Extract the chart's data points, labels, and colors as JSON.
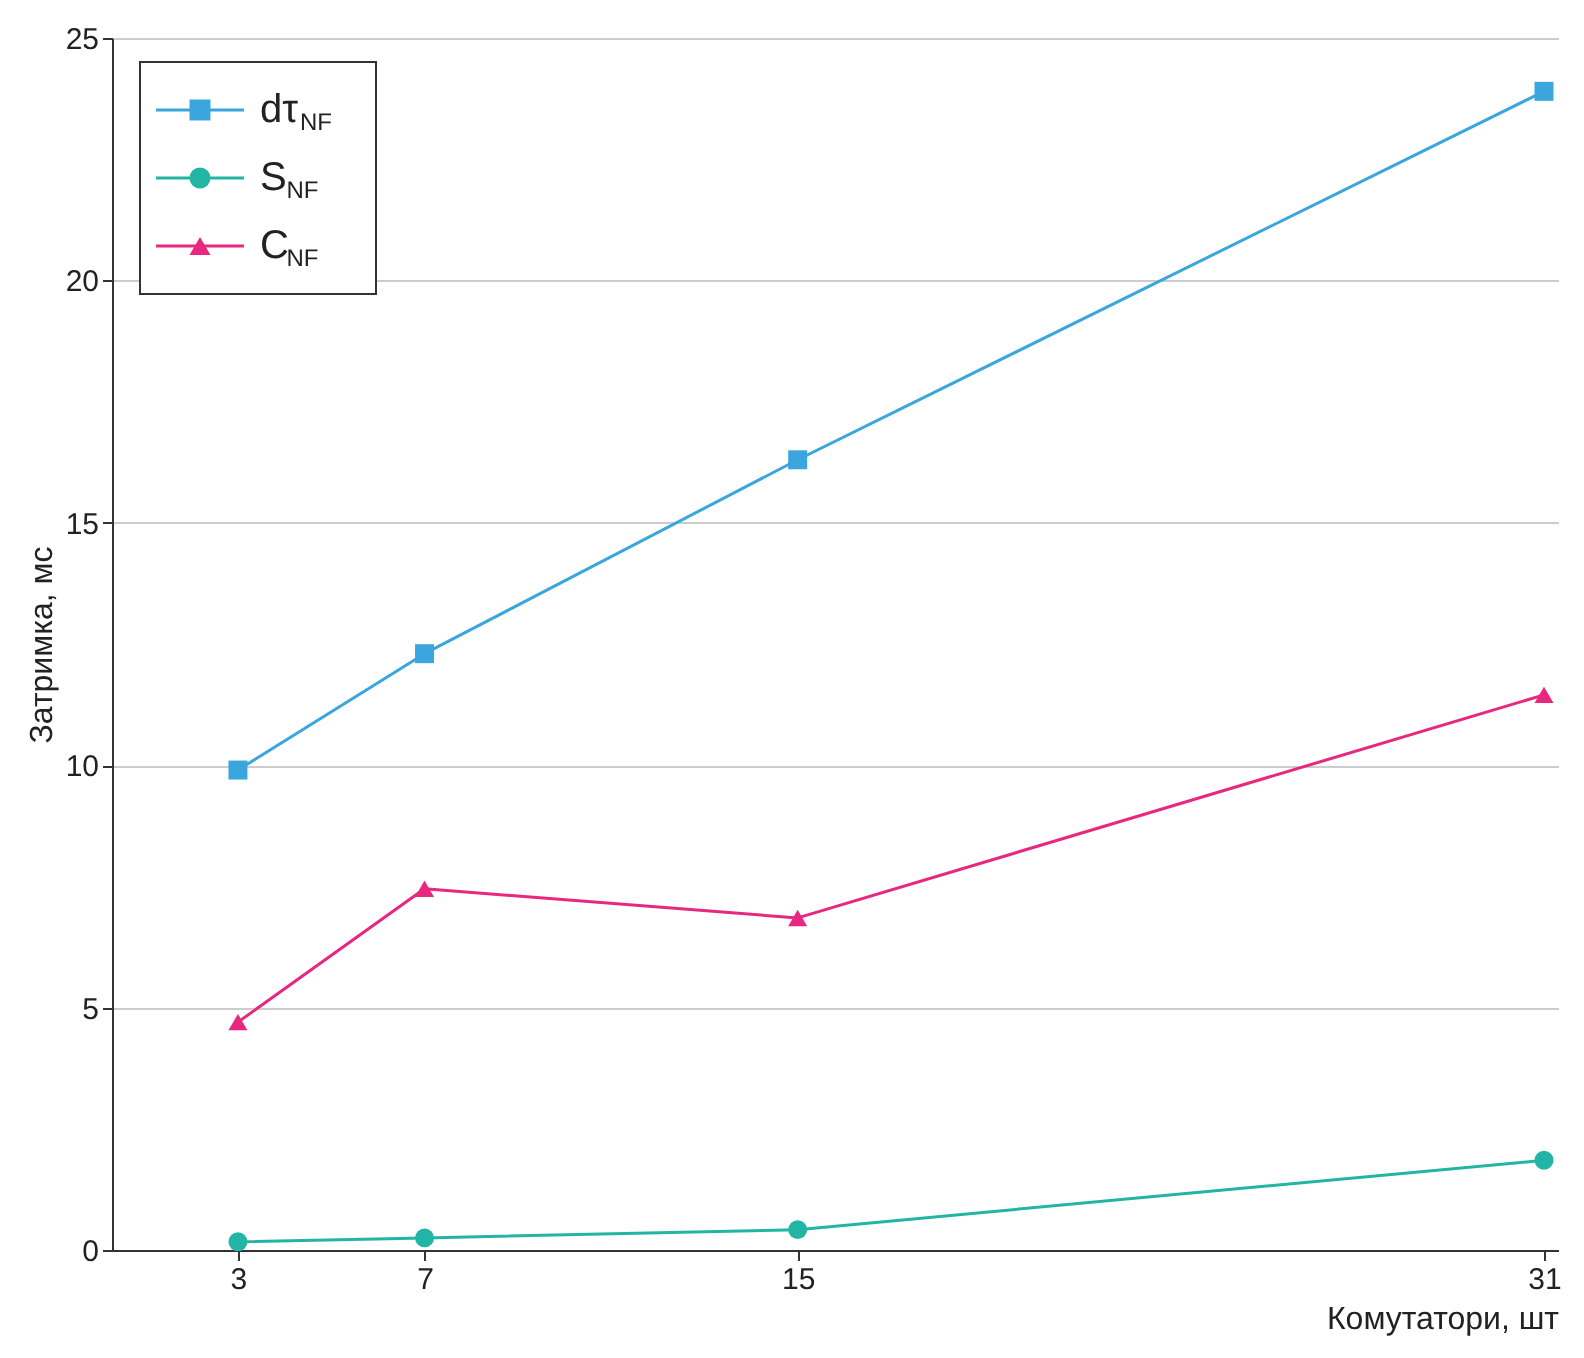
{
  "chart_data": {
    "type": "line",
    "xlabel": "Комутатори, шт",
    "ylabel": "Затримка, мс",
    "x": [
      3,
      7,
      15,
      31
    ],
    "xlim": [
      0.3,
      31.3
    ],
    "xticks": [
      3,
      7,
      15,
      31
    ],
    "ylim": [
      0,
      25
    ],
    "yticks": [
      0,
      5,
      10,
      15,
      20,
      25
    ],
    "grid": "y",
    "legend": "top left",
    "series": [
      {
        "name": "dτ$_{NF}$",
        "color": "#3aa6dd",
        "marker": "square",
        "values": [
          9.9,
          12.3,
          16.3,
          23.9
        ]
      },
      {
        "name": "S$_{NF}$",
        "color": "#22b5a5",
        "marker": "circle",
        "values": [
          0.17,
          0.25,
          0.42,
          1.85
        ]
      },
      {
        "name": "C$_{NF}$",
        "color": "#e8277f",
        "marker": "triangle",
        "values": [
          4.7,
          7.45,
          6.85,
          11.45
        ]
      }
    ]
  }
}
